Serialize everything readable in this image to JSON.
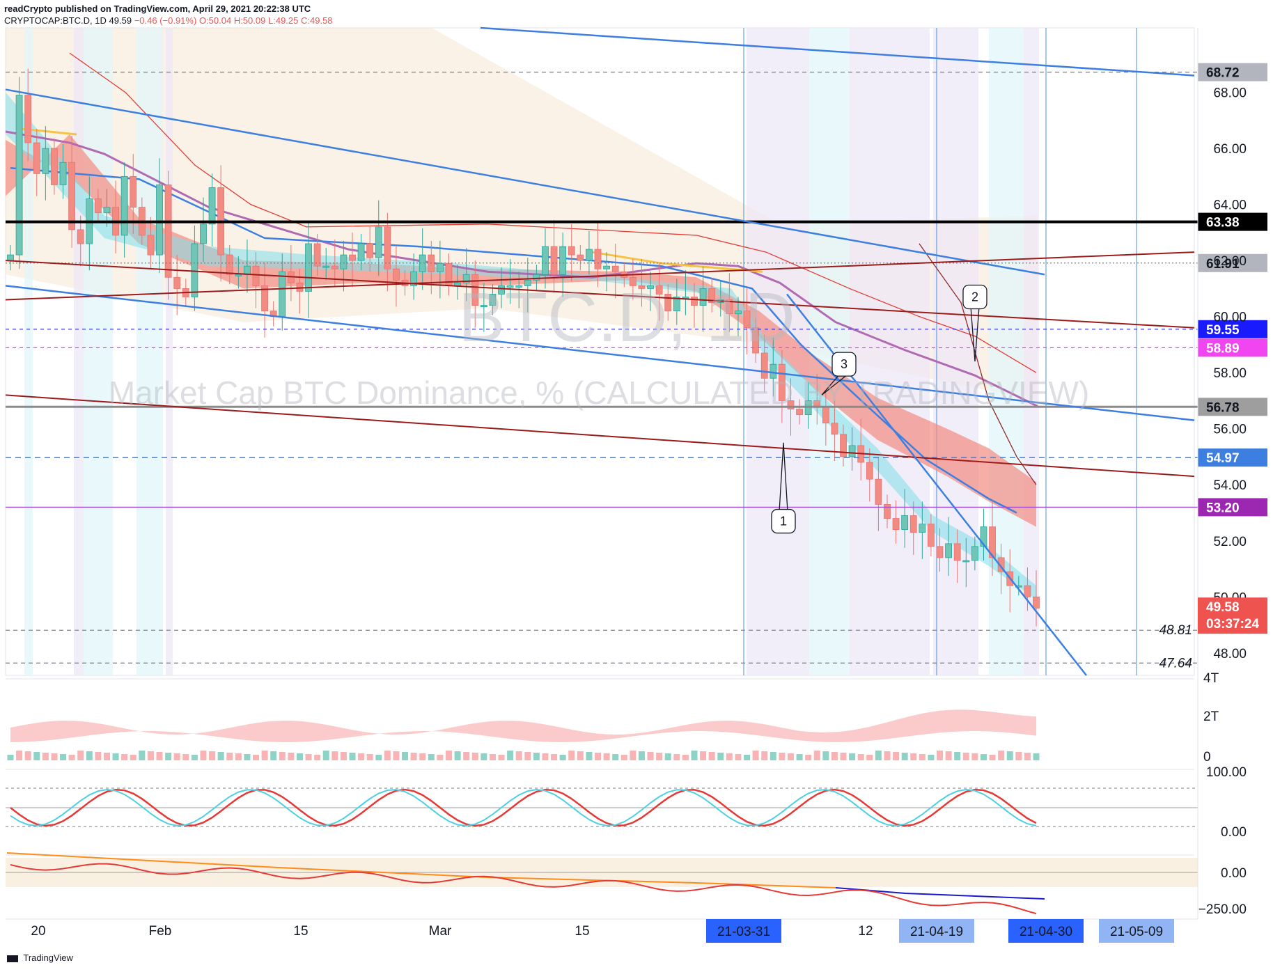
{
  "header": {
    "line1": "readCrypto published on TradingView.com, April 29, 2021 20:22:38 UTC",
    "symbol": "CRYPTOCAP:BTC.D, 1D",
    "last": "49.59",
    "change": "−0.46 (−0.91%)",
    "open": "O:50.04",
    "high": "H:50.09",
    "low": "L:49.25",
    "close": "C:49.58"
  },
  "watermark": {
    "ticker": "BTC.D, 1D",
    "description": "Market Cap BTC Dominance, % (CALCULATED BY TRADINGVIEW)"
  },
  "colors": {
    "up": "#26a69a",
    "down": "#ef5350",
    "trend_blue": "#3d7fe0",
    "dark_red_line": "#9b1b1b",
    "cloud_red": "#f28b82",
    "cloud_teal": "#80deea",
    "purple_ma": "#b06ab3",
    "orange_ma": "#f5c242"
  },
  "chart_data": {
    "type": "candlestick",
    "title": "Market Cap BTC Dominance, % (CALCULATED BY TRADINGVIEW)",
    "ylim": [
      47.2,
      70.3
    ],
    "y_ticks": [
      "68.00",
      "66.00",
      "64.00",
      "62.00",
      "60.00",
      "58.00",
      "56.00",
      "54.00",
      "52.00",
      "50.00",
      "48.00"
    ],
    "x_ticks": [
      "20",
      "Feb",
      "15",
      "Mar",
      "15",
      "12"
    ],
    "date_markers": [
      "21-03-31",
      "21-04-19",
      "21-04-30",
      "21-05-09"
    ],
    "price_levels": [
      {
        "label": "68.72",
        "value": 68.72
      },
      {
        "label": "63.38",
        "value": 63.38
      },
      {
        "label": "61.91",
        "value": 61.91
      },
      {
        "label": "59.55",
        "value": 59.55
      },
      {
        "label": "58.89",
        "value": 58.89
      },
      {
        "label": "56.78",
        "value": 56.78
      },
      {
        "label": "54.97",
        "value": 54.97
      },
      {
        "label": "53.20",
        "value": 53.2
      },
      {
        "label": "48.81",
        "value": 48.81
      },
      {
        "label": "47.64",
        "value": 47.64
      }
    ],
    "last_price": {
      "label": "49.58",
      "countdown": "03:37:24",
      "value": 49.58
    },
    "callouts": [
      "1",
      "2",
      "3"
    ],
    "closes": [
      62.2,
      67.9,
      66.2,
      65.1,
      66.0,
      64.7,
      65.5,
      63.1,
      62.6,
      64.2,
      63.7,
      63.9,
      62.9,
      65.0,
      63.9,
      62.9,
      62.2,
      64.7,
      61.4,
      61.0,
      60.7,
      62.6,
      63.3,
      64.6,
      62.2,
      61.5,
      61.5,
      61.8,
      61.1,
      60.2,
      60.0,
      61.6,
      61.2,
      60.9,
      62.6,
      61.8,
      61.8,
      61.7,
      62.2,
      62.0,
      62.6,
      62.1,
      63.2,
      61.7,
      61.3,
      61.1,
      61.6,
      62.2,
      61.6,
      61.9,
      61.1,
      61.2,
      61.5,
      60.4,
      60.4,
      60.8,
      61.1,
      61.1,
      61.1,
      61.3,
      61.5,
      62.5,
      61.5,
      62.5,
      62.2,
      62.0,
      62.4,
      61.7,
      61.8,
      61.6,
      61.4,
      61.1,
      61.0,
      61.1,
      60.8,
      60.2,
      60.7,
      60.7,
      60.4,
      61.0,
      60.5,
      60.6,
      60.1,
      60.2,
      59.6,
      58.7,
      57.8,
      58.3,
      57.0,
      56.7,
      56.5,
      57.0,
      56.8,
      56.2,
      55.8,
      55.0,
      55.4,
      54.8,
      54.2,
      53.3,
      52.8,
      52.4,
      52.9,
      52.3,
      52.6,
      51.8,
      51.4,
      51.9,
      51.3,
      51.3,
      51.8,
      52.5,
      51.4,
      50.9,
      50.4,
      50.4,
      50.0,
      49.6
    ],
    "series": [
      {
        "name": "upper trendline",
        "values": [
          68.1,
          61.5
        ]
      },
      {
        "name": "mid trendline",
        "values": [
          61.1,
          56.3
        ]
      },
      {
        "name": "red rising line",
        "values": [
          60.6,
          62.3
        ]
      },
      {
        "name": "red falling line 1",
        "values": [
          62.0,
          59.6
        ]
      },
      {
        "name": "red falling line 2",
        "values": [
          57.2,
          54.3
        ]
      }
    ],
    "volume_axis": [
      "4T",
      "2T",
      "0"
    ],
    "oscillator_axis": [
      "100.00",
      "0.00"
    ],
    "bottom_axis": [
      "0.00",
      "−250.00"
    ]
  },
  "footer": {
    "brand": "TradingView"
  }
}
